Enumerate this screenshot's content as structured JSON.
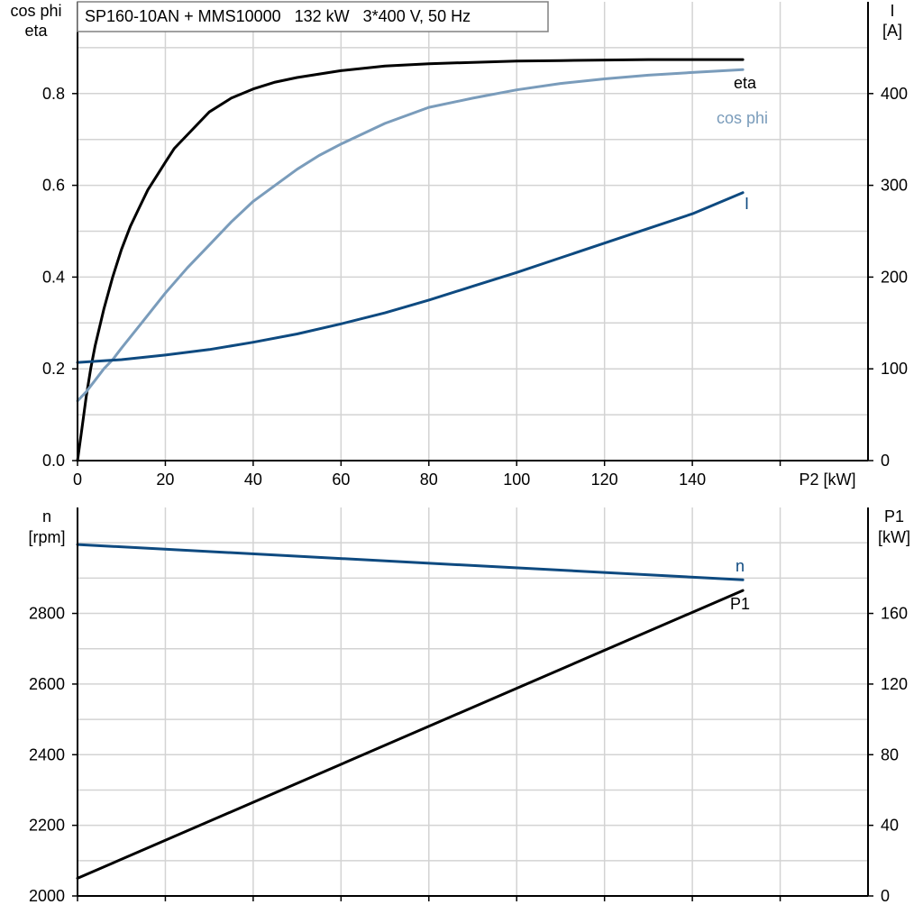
{
  "title": "SP160-10AN + MMS10000   132 kW   3*400 V, 50 Hz",
  "colors": {
    "eta": "#000000",
    "cos_phi": "#7a9cbb",
    "I": "#0e4a80",
    "n": "#0e4a80",
    "P1": "#000000"
  },
  "chart_data": [
    {
      "type": "line",
      "x_axis": {
        "label": "P2 [kW]",
        "range": [
          0,
          180
        ],
        "ticks": [
          0,
          20,
          40,
          60,
          80,
          100,
          120,
          140
        ]
      },
      "y_left": {
        "label_line1": "cos phi",
        "label_line2": "eta",
        "range": [
          0,
          1.0
        ],
        "ticks": [
          0.0,
          0.2,
          0.4,
          0.6,
          0.8
        ],
        "tick_labels": [
          "0.0",
          "0.2",
          "0.4",
          "0.6",
          "0.8"
        ]
      },
      "y_right": {
        "label_line1": "I",
        "label_line2": "[A]",
        "range": [
          0,
          500
        ],
        "ticks": [
          0,
          100,
          200,
          300,
          400
        ],
        "tick_labels": [
          "0",
          "100",
          "200",
          "300",
          "400"
        ]
      },
      "grid": true,
      "series": [
        {
          "name": "eta",
          "axis": "left",
          "label": "eta",
          "x": [
            0,
            1,
            2,
            3,
            4,
            6,
            8,
            10,
            12,
            14,
            16,
            18,
            20,
            22,
            25,
            30,
            35,
            40,
            45,
            50,
            60,
            70,
            80,
            90,
            100,
            110,
            120,
            130,
            140,
            150,
            151.5
          ],
          "y": [
            0.0,
            0.07,
            0.14,
            0.2,
            0.25,
            0.33,
            0.4,
            0.46,
            0.51,
            0.55,
            0.59,
            0.62,
            0.65,
            0.68,
            0.71,
            0.76,
            0.79,
            0.81,
            0.825,
            0.835,
            0.85,
            0.86,
            0.865,
            0.868,
            0.871,
            0.872,
            0.873,
            0.874,
            0.874,
            0.874,
            0.874
          ]
        },
        {
          "name": "cos phi",
          "axis": "left",
          "label": "cos phi",
          "x": [
            0,
            2,
            4,
            6,
            8,
            10,
            15,
            20,
            25,
            30,
            35,
            40,
            45,
            50,
            55,
            60,
            70,
            80,
            90,
            100,
            110,
            120,
            130,
            140,
            151.5
          ],
          "y": [
            0.13,
            0.15,
            0.175,
            0.2,
            0.22,
            0.245,
            0.305,
            0.365,
            0.42,
            0.47,
            0.52,
            0.565,
            0.6,
            0.635,
            0.665,
            0.69,
            0.735,
            0.77,
            0.79,
            0.808,
            0.822,
            0.832,
            0.84,
            0.846,
            0.852
          ]
        },
        {
          "name": "I",
          "axis": "right",
          "label": "I",
          "x": [
            0,
            10,
            20,
            30,
            40,
            50,
            60,
            70,
            80,
            90,
            100,
            110,
            120,
            130,
            140,
            151.5
          ],
          "y": [
            107,
            110,
            115,
            121,
            129,
            138,
            149,
            161,
            175,
            190,
            205,
            221,
            237,
            253,
            269,
            292
          ]
        }
      ]
    },
    {
      "type": "line",
      "x_axis": {
        "range": [
          0,
          180
        ]
      },
      "y_left": {
        "label_line1": "n",
        "label_line2": "[rpm]",
        "range": [
          2000,
          3100
        ],
        "ticks": [
          2000,
          2200,
          2400,
          2600,
          2800
        ],
        "tick_labels": [
          "2000",
          "2200",
          "2400",
          "2600",
          "2800"
        ]
      },
      "y_right": {
        "label_line1": "P1",
        "label_line2": "[kW]",
        "range": [
          0,
          220
        ],
        "ticks": [
          0,
          40,
          80,
          120,
          160
        ],
        "tick_labels": [
          "0",
          "40",
          "80",
          "120",
          "160"
        ]
      },
      "grid": true,
      "series": [
        {
          "name": "n",
          "axis": "left",
          "label": "n",
          "x": [
            0,
            151.5
          ],
          "y": [
            2995,
            2895
          ]
        },
        {
          "name": "P1",
          "axis": "right",
          "label": "P1",
          "x": [
            0,
            151.5
          ],
          "y": [
            10,
            173
          ]
        }
      ]
    }
  ]
}
